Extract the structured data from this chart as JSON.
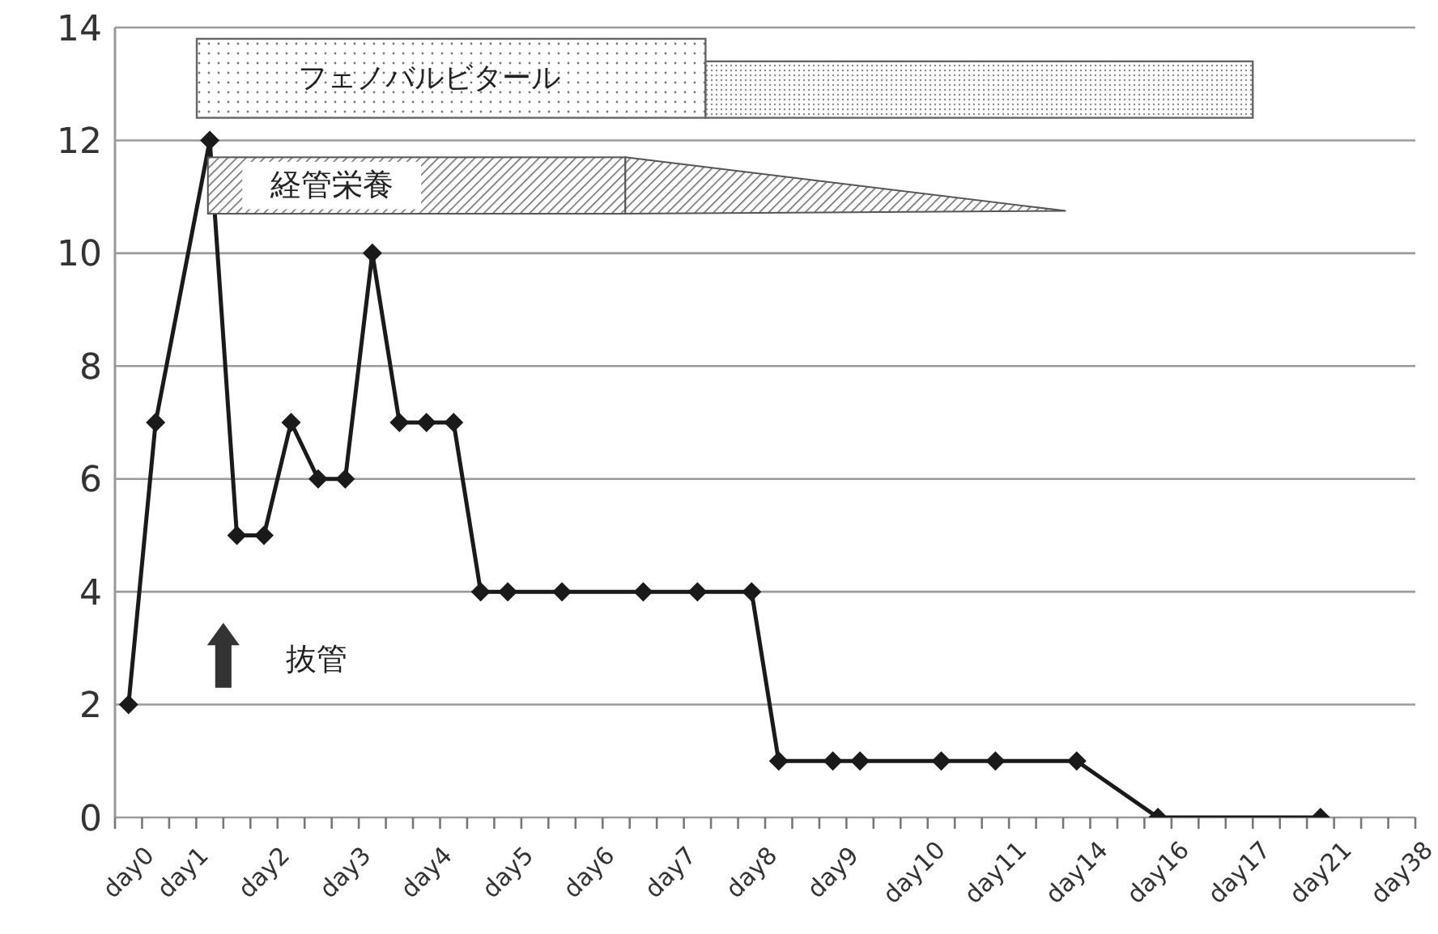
{
  "chart_data": {
    "type": "line",
    "categories": [
      "day0",
      null,
      "day1",
      null,
      null,
      "day2",
      null,
      null,
      "day3",
      null,
      null,
      "day4",
      null,
      null,
      "day5",
      null,
      null,
      "day6",
      null,
      null,
      "day7",
      null,
      null,
      "day8",
      null,
      null,
      "day9",
      null,
      null,
      "day10",
      null,
      null,
      "day11",
      null,
      null,
      "day14",
      null,
      null,
      "day16",
      null,
      null,
      "day17",
      null,
      null,
      "day21",
      null,
      null,
      "day38"
    ],
    "series": [
      {
        "color": "#1a1a1a",
        "values": [
          2,
          7,
          null,
          12,
          5,
          5,
          7,
          6,
          6,
          10,
          7,
          7,
          7,
          4,
          4,
          null,
          4,
          null,
          null,
          4,
          null,
          4,
          null,
          4,
          1,
          null,
          1,
          1,
          null,
          null,
          1,
          null,
          1,
          null,
          null,
          1,
          null,
          null,
          0,
          null,
          null,
          null,
          null,
          null,
          0,
          null,
          null,
          null
        ]
      }
    ],
    "ylim": [
      0,
      14
    ],
    "yticks": [
      0,
      2,
      4,
      6,
      8,
      10,
      12,
      14
    ],
    "grid": "y",
    "marker": "diamond",
    "line_style": "solid",
    "annotations": [
      "フェノバルビタール",
      "経管栄養",
      "抜管"
    ]
  }
}
